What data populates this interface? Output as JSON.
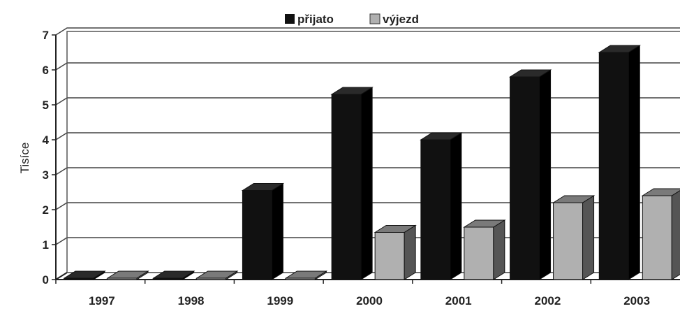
{
  "chart_data": {
    "type": "bar",
    "categories": [
      "1997",
      "1998",
      "1999",
      "2000",
      "2001",
      "2002",
      "2003"
    ],
    "series": [
      {
        "name": "přijato",
        "values": [
          0,
          0,
          2.55,
          5.3,
          4.0,
          5.8,
          6.5
        ]
      },
      {
        "name": "výjezd",
        "values": [
          0,
          0,
          0,
          1.35,
          1.5,
          2.2,
          2.4
        ]
      }
    ],
    "ylabel": "Tisíce",
    "ylim": [
      0,
      7
    ],
    "yticks": [
      "0",
      "1",
      "2",
      "3",
      "4",
      "5",
      "6",
      "7"
    ],
    "grid": true,
    "legend_position": "top-center",
    "colors": {
      "přijato": "#111111",
      "výjezd": "#b0b0b0"
    }
  }
}
